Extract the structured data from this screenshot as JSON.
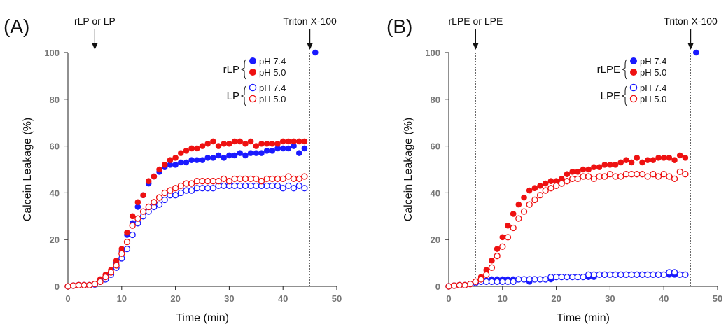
{
  "chart_data": [
    {
      "type": "scatter",
      "panel_label": "(A)",
      "xlabel": "Time (min)",
      "ylabel": "Calcein Leakage (%)",
      "xlim": [
        0,
        50
      ],
      "ylim": [
        0,
        100
      ],
      "xticks": [
        0,
        10,
        20,
        30,
        40,
        50
      ],
      "yticks": [
        0,
        20,
        40,
        60,
        80,
        100
      ],
      "grid": false,
      "legend_position": "top-right",
      "annotations": [
        {
          "text": "rLP or LP",
          "x": 5
        },
        {
          "text": "Triton X-100",
          "x": 45
        }
      ],
      "legend_groups": [
        {
          "label": "rLP",
          "entries": [
            "pH 7.4",
            "pH 5.0"
          ]
        },
        {
          "label": "LP",
          "entries": [
            "pH 7.4",
            "pH 5.0"
          ]
        }
      ],
      "series": [
        {
          "name": "rLP pH 7.4",
          "color": "#1a1aff",
          "filled": true,
          "x": [
            0,
            1,
            2,
            3,
            4,
            5,
            6,
            7,
            8,
            9,
            10,
            11,
            12,
            13,
            14,
            15,
            16,
            17,
            18,
            19,
            20,
            21,
            22,
            23,
            24,
            25,
            26,
            27,
            28,
            29,
            30,
            31,
            32,
            33,
            34,
            35,
            36,
            37,
            38,
            39,
            40,
            41,
            42,
            43,
            44,
            46
          ],
          "y": [
            0,
            0.3,
            0.5,
            0.5,
            0.5,
            1,
            2,
            4,
            6,
            10,
            15,
            22,
            27,
            34,
            39,
            44,
            47,
            49,
            51,
            52,
            52,
            53,
            53,
            54,
            54,
            54,
            55,
            55,
            56,
            55,
            56,
            56,
            57,
            56,
            57,
            57,
            57,
            58,
            58,
            59,
            59,
            59,
            60,
            57,
            59,
            100
          ]
        },
        {
          "name": "rLP pH 5.0",
          "color": "#ee1111",
          "filled": true,
          "x": [
            0,
            1,
            2,
            3,
            4,
            5,
            6,
            7,
            8,
            9,
            10,
            11,
            12,
            13,
            14,
            15,
            16,
            17,
            18,
            19,
            20,
            21,
            22,
            23,
            24,
            25,
            26,
            27,
            28,
            29,
            30,
            31,
            32,
            33,
            34,
            35,
            36,
            37,
            38,
            39,
            40,
            41,
            42,
            43,
            44
          ],
          "y": [
            0,
            0.3,
            0.5,
            0.5,
            0.5,
            1,
            3,
            5,
            7,
            11,
            16,
            23,
            30,
            36,
            39,
            45,
            47,
            50,
            52,
            54,
            55,
            57,
            58,
            59,
            59,
            60,
            61,
            62,
            60,
            61,
            61,
            62,
            62,
            61,
            62,
            60,
            61,
            61,
            61,
            61,
            62,
            62,
            62,
            62,
            62
          ]
        },
        {
          "name": "LP pH 7.4",
          "color": "#1a1aff",
          "filled": false,
          "x": [
            0,
            1,
            2,
            3,
            4,
            5,
            6,
            7,
            8,
            9,
            10,
            11,
            12,
            13,
            14,
            15,
            16,
            17,
            18,
            19,
            20,
            21,
            22,
            23,
            24,
            25,
            26,
            27,
            28,
            29,
            30,
            31,
            32,
            33,
            34,
            35,
            36,
            37,
            38,
            39,
            40,
            41,
            42,
            43,
            44
          ],
          "y": [
            0,
            0.3,
            0.5,
            0.5,
            0.5,
            0.8,
            2,
            3,
            5,
            8,
            12,
            16,
            22,
            27,
            30,
            32,
            34,
            35,
            37,
            39,
            39,
            40,
            41,
            41,
            42,
            42,
            42,
            42,
            43,
            43,
            43,
            43,
            43,
            43,
            43,
            43,
            43,
            43,
            43,
            43,
            42,
            43,
            42,
            43,
            42
          ]
        },
        {
          "name": "LP pH 5.0",
          "color": "#ee1111",
          "filled": false,
          "x": [
            0,
            1,
            2,
            3,
            4,
            5,
            6,
            7,
            8,
            9,
            10,
            11,
            12,
            13,
            14,
            15,
            16,
            17,
            18,
            19,
            20,
            21,
            22,
            23,
            24,
            25,
            26,
            27,
            28,
            29,
            30,
            31,
            32,
            33,
            34,
            35,
            36,
            37,
            38,
            39,
            40,
            41,
            42,
            43,
            44
          ],
          "y": [
            0,
            0.3,
            0.5,
            0.5,
            0.5,
            1,
            2,
            4,
            6,
            9,
            14,
            19,
            26,
            29,
            32,
            34,
            36,
            38,
            40,
            41,
            42,
            43,
            44,
            44,
            45,
            45,
            45,
            45,
            45,
            46,
            45,
            46,
            46,
            46,
            46,
            46,
            45,
            46,
            46,
            46,
            46,
            47,
            46,
            46,
            47
          ]
        }
      ]
    },
    {
      "type": "scatter",
      "panel_label": "(B)",
      "xlabel": "Time (min)",
      "ylabel": "Calcein Leakage (%)",
      "xlim": [
        0,
        50
      ],
      "ylim": [
        0,
        100
      ],
      "xticks": [
        0,
        10,
        20,
        30,
        40,
        50
      ],
      "yticks": [
        0,
        20,
        40,
        60,
        80,
        100
      ],
      "grid": false,
      "legend_position": "top-right",
      "annotations": [
        {
          "text": "rLPE or LPE",
          "x": 5
        },
        {
          "text": "Triton X-100",
          "x": 45
        }
      ],
      "legend_groups": [
        {
          "label": "rLPE",
          "entries": [
            "pH 7.4",
            "pH 5.0"
          ]
        },
        {
          "label": "LPE",
          "entries": [
            "pH 7.4",
            "pH 5.0"
          ]
        }
      ],
      "series": [
        {
          "name": "rLPE pH 7.4",
          "color": "#1a1aff",
          "filled": true,
          "x": [
            0,
            1,
            2,
            3,
            4,
            5,
            6,
            7,
            8,
            9,
            10,
            11,
            12,
            13,
            14,
            15,
            16,
            17,
            18,
            19,
            20,
            21,
            22,
            23,
            24,
            25,
            26,
            27,
            28,
            29,
            30,
            31,
            32,
            33,
            34,
            35,
            36,
            37,
            38,
            39,
            40,
            41,
            42,
            43,
            44,
            46
          ],
          "y": [
            0,
            0.3,
            0.5,
            0.5,
            1,
            1.5,
            2,
            2.5,
            3,
            3,
            3,
            3,
            3,
            3,
            3,
            2,
            3,
            3,
            3,
            3,
            4,
            4,
            4,
            4,
            4,
            4,
            4,
            4,
            5,
            5,
            5,
            5,
            5,
            5,
            5,
            5,
            5,
            5,
            5,
            5,
            5,
            5,
            5,
            5,
            5,
            100
          ]
        },
        {
          "name": "rLPE pH 5.0",
          "color": "#ee1111",
          "filled": true,
          "x": [
            0,
            1,
            2,
            3,
            4,
            5,
            6,
            7,
            8,
            9,
            10,
            11,
            12,
            13,
            14,
            15,
            16,
            17,
            18,
            19,
            20,
            21,
            22,
            23,
            24,
            25,
            26,
            27,
            28,
            29,
            30,
            31,
            32,
            33,
            34,
            35,
            36,
            37,
            38,
            39,
            40,
            41,
            42,
            43,
            44
          ],
          "y": [
            0,
            0.3,
            0.5,
            0.5,
            1,
            2,
            4,
            7,
            11,
            16,
            21,
            26,
            31,
            35,
            38,
            41,
            42,
            43,
            44,
            45,
            45,
            46,
            48,
            49,
            49,
            50,
            50,
            51,
            51,
            52,
            52,
            52,
            53,
            54,
            53,
            55,
            53,
            54,
            54,
            55,
            55,
            55,
            54,
            56,
            55
          ]
        },
        {
          "name": "LPE pH 7.4",
          "color": "#1a1aff",
          "filled": false,
          "x": [
            0,
            1,
            2,
            3,
            4,
            5,
            6,
            7,
            8,
            9,
            10,
            11,
            12,
            13,
            14,
            15,
            16,
            17,
            18,
            19,
            20,
            21,
            22,
            23,
            24,
            25,
            26,
            27,
            28,
            29,
            30,
            31,
            32,
            33,
            34,
            35,
            36,
            37,
            38,
            39,
            40,
            41,
            42,
            43,
            44
          ],
          "y": [
            0,
            0.3,
            0.5,
            0.5,
            1,
            1.5,
            2,
            2,
            2,
            2,
            2,
            2,
            2,
            3,
            3,
            3,
            3,
            3,
            3,
            4,
            4,
            4,
            4,
            4,
            4,
            4,
            5,
            5,
            5,
            5,
            5,
            5,
            5,
            5,
            5,
            5,
            5,
            5,
            5,
            5,
            5,
            6,
            6,
            5,
            5
          ]
        },
        {
          "name": "LPE pH 5.0",
          "color": "#ee1111",
          "filled": false,
          "x": [
            0,
            1,
            2,
            3,
            4,
            5,
            6,
            7,
            8,
            9,
            10,
            11,
            12,
            13,
            14,
            15,
            16,
            17,
            18,
            19,
            20,
            21,
            22,
            23,
            24,
            25,
            26,
            27,
            28,
            29,
            30,
            31,
            32,
            33,
            34,
            35,
            36,
            37,
            38,
            39,
            40,
            41,
            42,
            43,
            44
          ],
          "y": [
            0,
            0.3,
            0.5,
            0.5,
            1,
            2,
            3,
            5,
            8,
            13,
            17,
            21,
            25,
            29,
            32,
            35,
            37,
            39,
            41,
            42,
            43,
            44,
            45,
            46,
            46,
            47,
            47,
            46,
            47,
            47,
            48,
            47,
            47,
            48,
            48,
            48,
            48,
            47,
            48,
            47,
            48,
            47,
            46,
            49,
            48
          ]
        }
      ]
    }
  ]
}
